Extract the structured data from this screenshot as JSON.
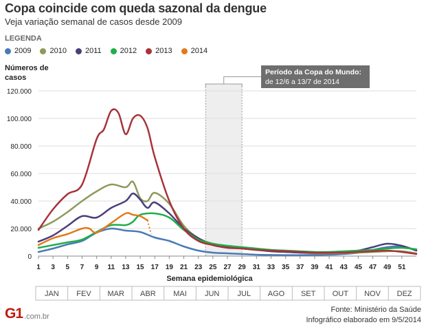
{
  "header": {
    "title": "Copa coincide com queda sazonal da dengue",
    "subtitle": "Veja variação semanal de casos desde 2009",
    "legend_title": "LEGENDA"
  },
  "colors": {
    "2009": "#4a7ab5",
    "2010": "#8c9a5b",
    "2011": "#4b3f7a",
    "2012": "#1fae4b",
    "2013": "#a8323a",
    "2014": "#e2791e",
    "grid": "#dddddd",
    "band": "#eeeeee"
  },
  "chart_data": {
    "type": "line",
    "ylabel": "Números de casos",
    "xlabel": "Semana epidemiológica",
    "ylim": [
      0,
      120000
    ],
    "xlim": [
      1,
      53
    ],
    "y_ticks": [
      "0",
      "20.000",
      "40.000",
      "60.000",
      "80.000",
      "100.000",
      "120.000"
    ],
    "y_tick_values": [
      0,
      20000,
      40000,
      60000,
      80000,
      100000,
      120000
    ],
    "x_ticks": [
      1,
      3,
      5,
      7,
      9,
      11,
      13,
      15,
      17,
      19,
      21,
      23,
      25,
      27,
      29,
      31,
      33,
      35,
      37,
      39,
      41,
      43,
      45,
      47,
      49,
      51
    ],
    "months": [
      "JAN",
      "FEV",
      "MAR",
      "ABR",
      "MAI",
      "JUN",
      "JUL",
      "AGO",
      "SET",
      "OUT",
      "NOV",
      "DEZ"
    ],
    "annotation": {
      "line1": "Período da Copa do Mundo:",
      "line2": "de 12/6 a 13/7 de 2014",
      "week_start": 24,
      "week_end": 29
    },
    "series": [
      {
        "name": "2009",
        "x": [
          1,
          3,
          5,
          7,
          9,
          11,
          13,
          15,
          17,
          19,
          21,
          23,
          25,
          27,
          29,
          31,
          33,
          35,
          37,
          39,
          41,
          43,
          45,
          47,
          49,
          51,
          53
        ],
        "values": [
          3000,
          5500,
          8500,
          11000,
          17000,
          20000,
          18500,
          17500,
          13500,
          11000,
          7000,
          4000,
          2500,
          2000,
          1500,
          1000,
          800,
          700,
          700,
          800,
          1000,
          1500,
          2500,
          4500,
          6500,
          7000,
          4000
        ]
      },
      {
        "name": "2010",
        "x": [
          1,
          3,
          5,
          7,
          9,
          11,
          13,
          14,
          15,
          16,
          17,
          19,
          21,
          23,
          25,
          27,
          29,
          31,
          33,
          35,
          37,
          39,
          41,
          43,
          45,
          47,
          49,
          51,
          53
        ],
        "values": [
          20000,
          25000,
          32000,
          40000,
          47000,
          52000,
          50000,
          54000,
          42000,
          40000,
          46000,
          38000,
          22000,
          13000,
          9000,
          7000,
          5500,
          4500,
          3500,
          3000,
          2500,
          2000,
          2000,
          2200,
          2500,
          3000,
          3500,
          3500,
          2000
        ]
      },
      {
        "name": "2011",
        "x": [
          1,
          3,
          5,
          7,
          9,
          11,
          13,
          14,
          15,
          16,
          17,
          19,
          21,
          23,
          25,
          27,
          29,
          31,
          33,
          35,
          37,
          39,
          41,
          43,
          45,
          47,
          49,
          51,
          53
        ],
        "values": [
          10500,
          15000,
          22000,
          29000,
          28000,
          35000,
          40000,
          45500,
          41000,
          35000,
          39000,
          31000,
          20000,
          13000,
          8000,
          6500,
          5500,
          4500,
          3500,
          3000,
          2500,
          2500,
          2500,
          3000,
          4000,
          6500,
          9000,
          7500,
          4000
        ]
      },
      {
        "name": "2012",
        "x": [
          1,
          3,
          5,
          7,
          9,
          11,
          13,
          14,
          15,
          17,
          19,
          21,
          23,
          25,
          27,
          29,
          31,
          33,
          35,
          37,
          39,
          41,
          43,
          45,
          47,
          49,
          51,
          53
        ],
        "values": [
          6000,
          8000,
          10000,
          12000,
          17500,
          22500,
          22500,
          25000,
          30000,
          31000,
          28000,
          19000,
          12000,
          9000,
          7500,
          6500,
          5500,
          4500,
          4000,
          3500,
          3000,
          3000,
          3500,
          4000,
          4500,
          5500,
          6000,
          5000
        ]
      },
      {
        "name": "2013",
        "x": [
          1,
          3,
          5,
          7,
          9,
          10,
          11,
          12,
          13,
          14,
          15,
          16,
          17,
          19,
          21,
          23,
          25,
          27,
          29,
          31,
          33,
          35,
          37,
          39,
          41,
          43,
          45,
          47,
          49,
          51,
          53
        ],
        "values": [
          19000,
          34000,
          45000,
          52000,
          85000,
          92000,
          105500,
          104000,
          88500,
          100000,
          102000,
          93000,
          72000,
          40000,
          20000,
          11000,
          8000,
          6000,
          5500,
          4500,
          4000,
          3500,
          3000,
          2500,
          2500,
          2500,
          3000,
          3500,
          4000,
          3000,
          1500
        ]
      },
      {
        "name": "2014",
        "x": [
          1,
          3,
          5,
          7,
          8,
          9,
          11,
          13,
          14,
          15,
          16
        ],
        "values": [
          8000,
          13000,
          16000,
          20000,
          20000,
          17000,
          24000,
          31000,
          30000,
          29000,
          26000
        ],
        "projection": {
          "x": [
            16,
            16.5
          ],
          "values": [
            26000,
            16000
          ]
        }
      }
    ]
  },
  "footer": {
    "source": "Fonte: Ministério da Saúde",
    "credit": "Infográfico elaborado em 9/5/2014",
    "logo_mark": "G1",
    "logo_domain": ".com.br"
  }
}
